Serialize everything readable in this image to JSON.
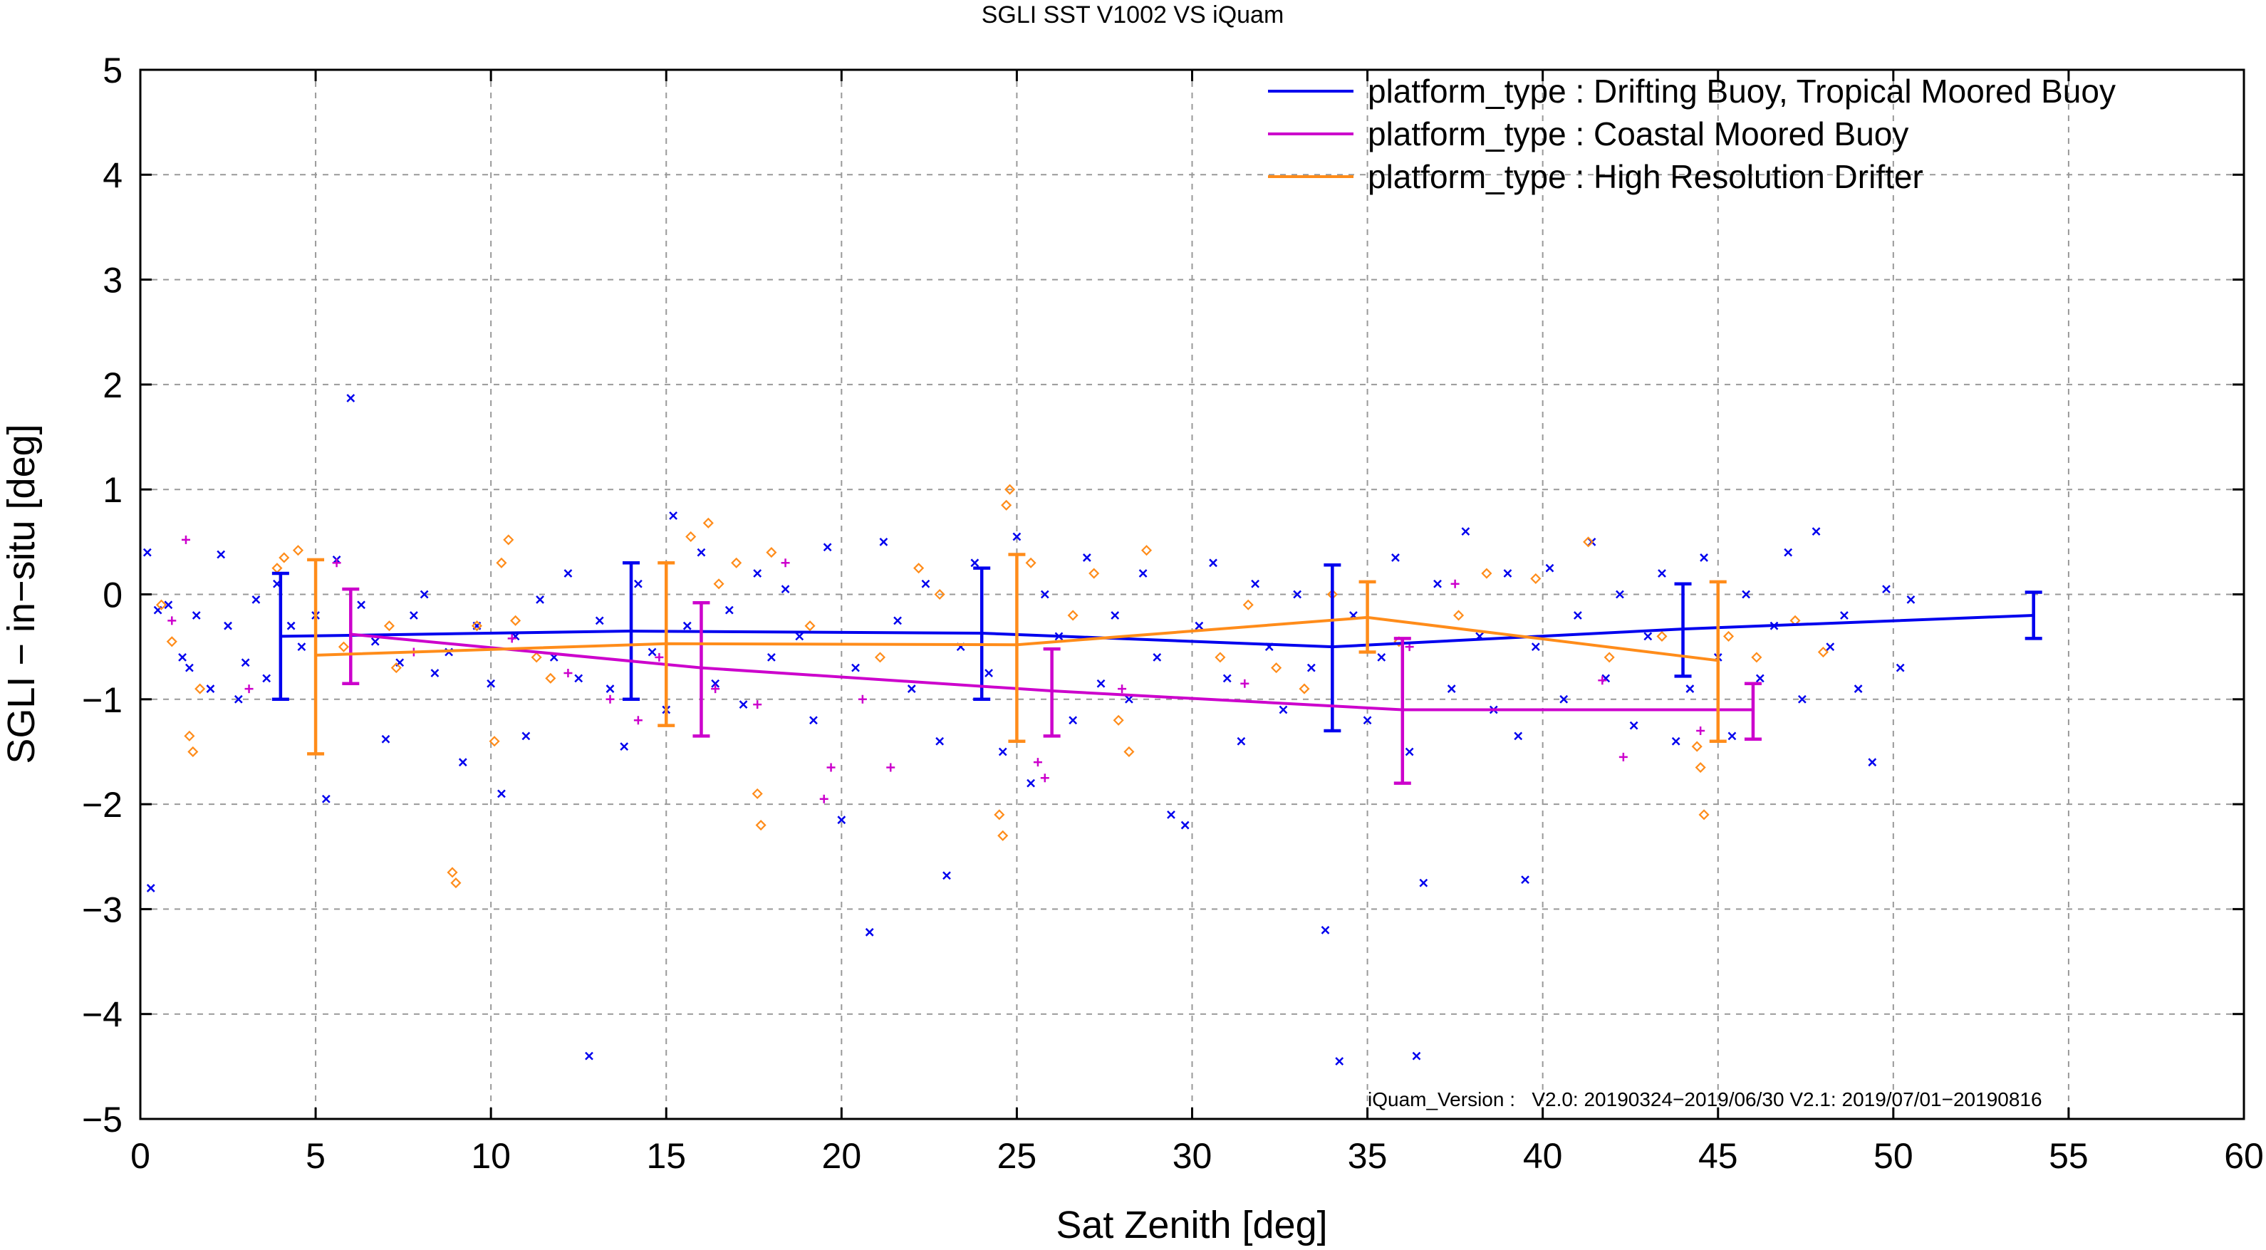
{
  "chart_data": {
    "type": "scatter",
    "title": "SGLI SST V1002 VS iQuam",
    "xlabel": "Sat Zenith [deg]",
    "ylabel": "SGLI − in−situ [deg]",
    "xlim": [
      0,
      60
    ],
    "ylim": [
      -5,
      5
    ],
    "xticks": [
      "0",
      "5",
      "10",
      "15",
      "20",
      "25",
      "30",
      "35",
      "40",
      "45",
      "50",
      "55",
      "60"
    ],
    "yticks": [
      "−5",
      "−4",
      "−3",
      "−2",
      "−1",
      "0",
      "1",
      "2",
      "3",
      "4",
      "5"
    ],
    "grid": true,
    "legend_position": "top-right",
    "annotation": "iQuam_Version :   V2.0: 20190324−2019/06/30 V2.1: 2019/07/01−20190816",
    "colors": {
      "blue": "#0000ee",
      "magenta": "#cc00cc",
      "orange": "#ff8c1a"
    },
    "series": [
      {
        "name": "platform_type : Drifting Buoy, Tropical Moored Buoy",
        "color": "#0000ee",
        "marker": "x",
        "line": {
          "x": [
            4,
            14,
            24,
            34,
            44,
            54
          ],
          "y": [
            -0.4,
            -0.35,
            -0.37,
            -0.5,
            -0.33,
            -0.2
          ],
          "err_low": [
            -1.0,
            -1.0,
            -1.0,
            -1.3,
            -0.78,
            -0.42
          ],
          "err_high": [
            0.2,
            0.3,
            0.25,
            0.28,
            0.1,
            0.02
          ]
        },
        "points": [
          [
            0.2,
            0.4
          ],
          [
            0.3,
            -2.8
          ],
          [
            0.5,
            -0.15
          ],
          [
            0.8,
            -0.1
          ],
          [
            1.2,
            -0.6
          ],
          [
            1.4,
            -0.7
          ],
          [
            1.6,
            -0.2
          ],
          [
            2.0,
            -0.9
          ],
          [
            2.3,
            0.38
          ],
          [
            2.5,
            -0.3
          ],
          [
            2.8,
            -1.0
          ],
          [
            3.0,
            -0.65
          ],
          [
            3.3,
            -0.05
          ],
          [
            3.6,
            -0.8
          ],
          [
            3.9,
            0.1
          ],
          [
            4.3,
            -0.3
          ],
          [
            4.6,
            -0.5
          ],
          [
            5.0,
            -0.2
          ],
          [
            5.3,
            -1.95
          ],
          [
            5.6,
            0.33
          ],
          [
            6.0,
            1.87
          ],
          [
            6.3,
            -0.1
          ],
          [
            6.7,
            -0.45
          ],
          [
            7.0,
            -1.38
          ],
          [
            7.4,
            -0.65
          ],
          [
            7.8,
            -0.2
          ],
          [
            8.1,
            0.0
          ],
          [
            8.4,
            -0.75
          ],
          [
            8.8,
            -0.55
          ],
          [
            9.2,
            -1.6
          ],
          [
            9.6,
            -0.3
          ],
          [
            10.0,
            -0.85
          ],
          [
            10.3,
            -1.9
          ],
          [
            10.7,
            -0.4
          ],
          [
            11.0,
            -1.35
          ],
          [
            11.4,
            -0.05
          ],
          [
            11.8,
            -0.6
          ],
          [
            12.2,
            0.2
          ],
          [
            12.5,
            -0.8
          ],
          [
            12.8,
            -4.4
          ],
          [
            13.1,
            -0.25
          ],
          [
            13.4,
            -0.9
          ],
          [
            13.8,
            -1.45
          ],
          [
            14.2,
            0.1
          ],
          [
            14.6,
            -0.55
          ],
          [
            15.0,
            -1.1
          ],
          [
            15.2,
            0.75
          ],
          [
            15.6,
            -0.3
          ],
          [
            16.0,
            0.4
          ],
          [
            16.4,
            -0.85
          ],
          [
            16.8,
            -0.15
          ],
          [
            17.2,
            -1.05
          ],
          [
            17.6,
            0.2
          ],
          [
            18.0,
            -0.6
          ],
          [
            18.4,
            0.05
          ],
          [
            18.8,
            -0.4
          ],
          [
            19.2,
            -1.2
          ],
          [
            19.6,
            0.45
          ],
          [
            20.0,
            -2.15
          ],
          [
            20.4,
            -0.7
          ],
          [
            20.8,
            -3.22
          ],
          [
            21.2,
            0.5
          ],
          [
            21.6,
            -0.25
          ],
          [
            22.0,
            -0.9
          ],
          [
            22.4,
            0.1
          ],
          [
            22.8,
            -1.4
          ],
          [
            23.0,
            -2.68
          ],
          [
            23.4,
            -0.5
          ],
          [
            23.8,
            0.3
          ],
          [
            24.2,
            -0.75
          ],
          [
            24.6,
            -1.5
          ],
          [
            25.0,
            0.55
          ],
          [
            25.4,
            -1.8
          ],
          [
            25.8,
            0.0
          ],
          [
            26.2,
            -0.4
          ],
          [
            26.6,
            -1.2
          ],
          [
            27.0,
            0.35
          ],
          [
            27.4,
            -0.85
          ],
          [
            27.8,
            -0.2
          ],
          [
            28.2,
            -1.0
          ],
          [
            28.6,
            0.2
          ],
          [
            29.0,
            -0.6
          ],
          [
            29.4,
            -2.1
          ],
          [
            29.8,
            -2.2
          ],
          [
            30.2,
            -0.3
          ],
          [
            30.6,
            0.3
          ],
          [
            31.0,
            -0.8
          ],
          [
            31.4,
            -1.4
          ],
          [
            31.8,
            0.1
          ],
          [
            32.2,
            -0.5
          ],
          [
            32.6,
            -1.1
          ],
          [
            33.0,
            0.0
          ],
          [
            33.4,
            -0.7
          ],
          [
            33.8,
            -3.2
          ],
          [
            34.2,
            -4.45
          ],
          [
            34.6,
            -0.2
          ],
          [
            35.0,
            -1.2
          ],
          [
            35.4,
            -0.6
          ],
          [
            35.8,
            0.35
          ],
          [
            36.2,
            -1.5
          ],
          [
            36.6,
            -2.75
          ],
          [
            36.4,
            -4.4
          ],
          [
            37.0,
            0.1
          ],
          [
            37.4,
            -0.9
          ],
          [
            37.8,
            0.6
          ],
          [
            38.2,
            -0.4
          ],
          [
            38.6,
            -1.1
          ],
          [
            39.0,
            0.2
          ],
          [
            39.3,
            -1.35
          ],
          [
            39.5,
            -2.72
          ],
          [
            39.8,
            -0.5
          ],
          [
            40.2,
            0.25
          ],
          [
            40.6,
            -1.0
          ],
          [
            41.0,
            -0.2
          ],
          [
            41.4,
            0.5
          ],
          [
            41.8,
            -0.8
          ],
          [
            42.2,
            0.0
          ],
          [
            42.6,
            -1.25
          ],
          [
            43.0,
            -0.4
          ],
          [
            43.4,
            0.2
          ],
          [
            43.8,
            -1.4
          ],
          [
            44.2,
            -0.9
          ],
          [
            44.6,
            0.35
          ],
          [
            45.0,
            -0.6
          ],
          [
            45.4,
            -1.35
          ],
          [
            45.8,
            0.0
          ],
          [
            46.2,
            -0.8
          ],
          [
            46.6,
            -0.3
          ],
          [
            47.0,
            0.4
          ],
          [
            47.4,
            -1.0
          ],
          [
            47.8,
            0.6
          ],
          [
            48.2,
            -0.5
          ],
          [
            48.6,
            -0.2
          ],
          [
            49.0,
            -0.9
          ],
          [
            49.4,
            -1.6
          ],
          [
            49.8,
            0.05
          ],
          [
            50.2,
            -0.7
          ],
          [
            50.5,
            -0.05
          ]
        ]
      },
      {
        "name": "platform_type : Coastal Moored Buoy",
        "color": "#cc00cc",
        "marker": "+",
        "line": {
          "x": [
            6,
            16,
            26,
            36,
            46
          ],
          "y": [
            -0.38,
            -0.7,
            -0.92,
            -1.1,
            -1.1
          ],
          "err_low": [
            -0.85,
            -1.35,
            -1.35,
            -1.8,
            -1.38
          ],
          "err_high": [
            0.05,
            -0.08,
            -0.52,
            -0.42,
            -0.85
          ]
        },
        "points": [
          [
            0.9,
            -0.25
          ],
          [
            1.3,
            0.52
          ],
          [
            3.1,
            -0.9
          ],
          [
            5.6,
            0.3
          ],
          [
            7.8,
            -0.55
          ],
          [
            10.6,
            -0.42
          ],
          [
            12.2,
            -0.75
          ],
          [
            13.4,
            -1.0
          ],
          [
            14.2,
            -1.2
          ],
          [
            14.8,
            -0.6
          ],
          [
            16.4,
            -0.9
          ],
          [
            17.6,
            -1.05
          ],
          [
            18.4,
            0.3
          ],
          [
            19.5,
            -1.95
          ],
          [
            19.7,
            -1.65
          ],
          [
            20.6,
            -1.0
          ],
          [
            21.4,
            -1.65
          ],
          [
            25.6,
            -1.6
          ],
          [
            25.8,
            -1.75
          ],
          [
            28.0,
            -0.9
          ],
          [
            31.5,
            -0.85
          ],
          [
            36.2,
            -0.5
          ],
          [
            37.5,
            0.1
          ],
          [
            41.7,
            -0.82
          ],
          [
            42.3,
            -1.55
          ],
          [
            44.5,
            -1.3
          ]
        ]
      },
      {
        "name": "platform_type : High Resolution Drifter",
        "color": "#ff8c1a",
        "marker": "diamond",
        "line": {
          "x": [
            5,
            15,
            25,
            35,
            45
          ],
          "y": [
            -0.58,
            -0.47,
            -0.48,
            -0.22,
            -0.63
          ],
          "err_low": [
            -1.52,
            -1.25,
            -1.4,
            -0.55,
            -1.4
          ],
          "err_high": [
            0.33,
            0.3,
            0.38,
            0.12,
            0.12
          ]
        },
        "points": [
          [
            0.6,
            -0.1
          ],
          [
            0.9,
            -0.45
          ],
          [
            1.4,
            -1.35
          ],
          [
            1.5,
            -1.5
          ],
          [
            1.7,
            -0.9
          ],
          [
            3.9,
            0.25
          ],
          [
            4.1,
            0.35
          ],
          [
            4.5,
            0.42
          ],
          [
            5.8,
            -0.5
          ],
          [
            7.1,
            -0.3
          ],
          [
            7.3,
            -0.7
          ],
          [
            8.9,
            -2.65
          ],
          [
            9.0,
            -2.75
          ],
          [
            9.6,
            -0.3
          ],
          [
            10.1,
            -1.4
          ],
          [
            10.3,
            0.3
          ],
          [
            10.5,
            0.52
          ],
          [
            10.7,
            -0.25
          ],
          [
            11.3,
            -0.6
          ],
          [
            11.7,
            -0.8
          ],
          [
            15.7,
            0.55
          ],
          [
            16.2,
            0.68
          ],
          [
            16.5,
            0.1
          ],
          [
            17.0,
            0.3
          ],
          [
            17.6,
            -1.9
          ],
          [
            17.7,
            -2.2
          ],
          [
            18.0,
            0.4
          ],
          [
            19.1,
            -0.3
          ],
          [
            21.1,
            -0.6
          ],
          [
            22.2,
            0.25
          ],
          [
            22.8,
            0.0
          ],
          [
            24.7,
            0.85
          ],
          [
            24.8,
            1.0
          ],
          [
            24.5,
            -2.1
          ],
          [
            24.6,
            -2.3
          ],
          [
            25.4,
            0.3
          ],
          [
            26.6,
            -0.2
          ],
          [
            27.2,
            0.2
          ],
          [
            27.9,
            -1.2
          ],
          [
            28.2,
            -1.5
          ],
          [
            28.7,
            0.42
          ],
          [
            30.8,
            -0.6
          ],
          [
            31.6,
            -0.1
          ],
          [
            32.4,
            -0.7
          ],
          [
            33.2,
            -0.9
          ],
          [
            34.0,
            0.0
          ],
          [
            35.9,
            -0.45
          ],
          [
            37.6,
            -0.2
          ],
          [
            38.4,
            0.2
          ],
          [
            39.8,
            0.15
          ],
          [
            41.3,
            0.5
          ],
          [
            41.9,
            -0.6
          ],
          [
            43.4,
            -0.4
          ],
          [
            44.4,
            -1.45
          ],
          [
            44.5,
            -1.65
          ],
          [
            44.6,
            -2.1
          ],
          [
            45.3,
            -0.4
          ],
          [
            46.1,
            -0.6
          ],
          [
            47.2,
            -0.25
          ],
          [
            48.0,
            -0.55
          ]
        ]
      }
    ]
  }
}
